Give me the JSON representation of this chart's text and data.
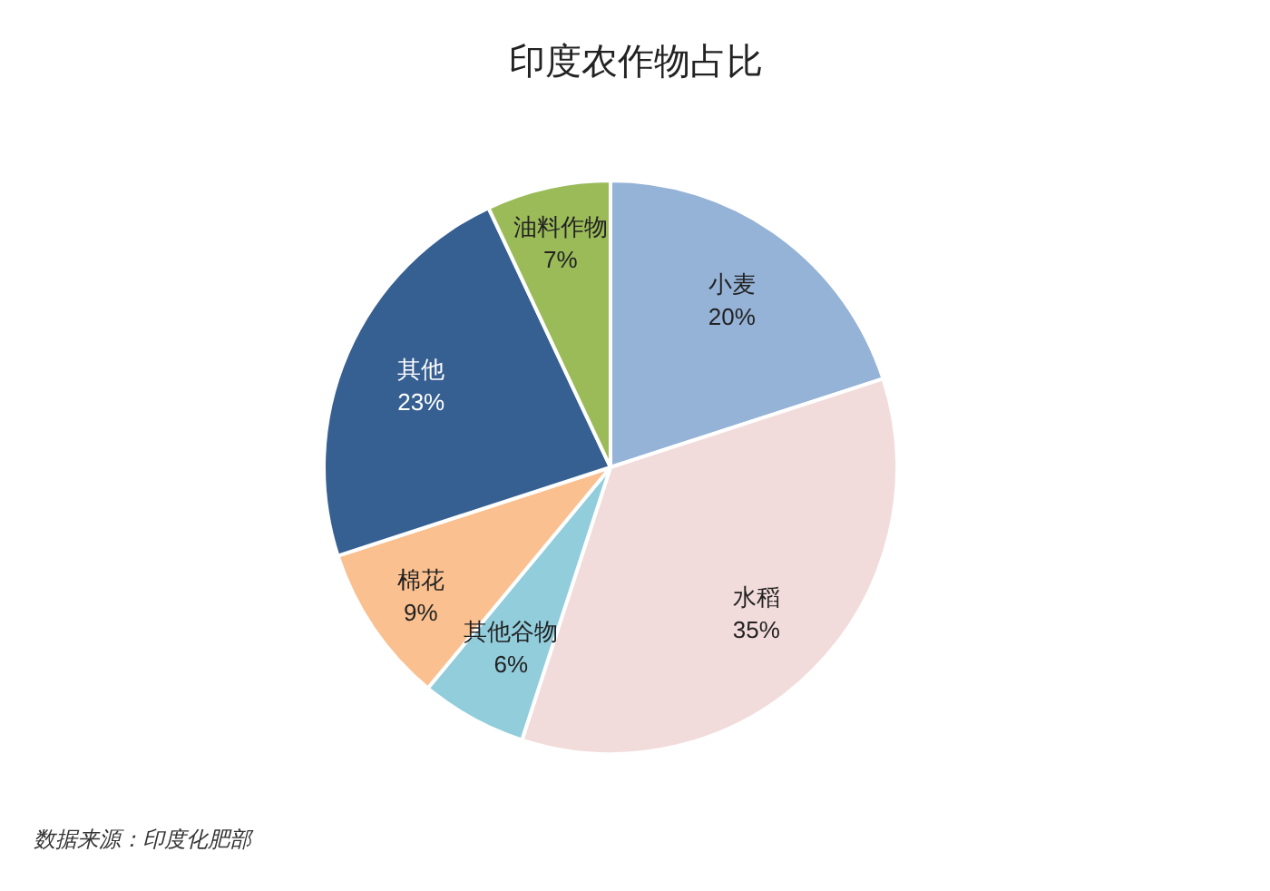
{
  "chart_data": {
    "type": "pie",
    "title": "印度农作物占比",
    "categories": [
      "小麦",
      "水稻",
      "其他谷物",
      "棉花",
      "其他",
      "油料作物"
    ],
    "values": [
      20,
      35,
      6,
      9,
      23,
      7
    ],
    "colors": [
      "#95b3d7",
      "#f2dcdb",
      "#92cddc",
      "#fac090",
      "#376092",
      "#9bbb59"
    ],
    "value_labels": [
      "20%",
      "35%",
      "6%",
      "9%",
      "23%",
      "7%"
    ],
    "annotations": [
      "数据来源：印度化肥部"
    ]
  }
}
